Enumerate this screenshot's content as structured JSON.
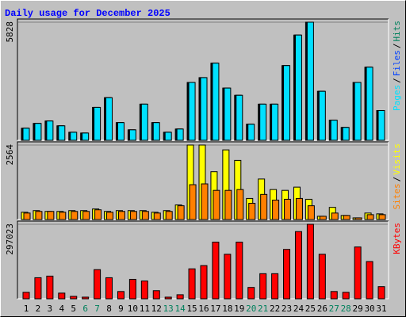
{
  "chart_data": [
    {
      "type": "bar",
      "title": "Daily usage for December 2025",
      "legend_separator": "/",
      "series": [
        {
          "name": "Hits",
          "color": "#00805c",
          "values": [
            595,
            832,
            951,
            713,
            396,
            357,
            1625,
            2101,
            872,
            515,
            1784,
            872,
            396,
            555,
            2854,
            3092,
            3806,
            2577,
            2220,
            793,
            1784,
            1784,
            3687,
            5193,
            5828,
            2418,
            991,
            634,
            2854,
            3608,
            1467
          ]
        },
        {
          "name": "Files",
          "color": "#0040ff",
          "values": [
            595,
            832,
            951,
            713,
            396,
            357,
            1625,
            2101,
            872,
            515,
            1784,
            872,
            396,
            555,
            2854,
            3092,
            3806,
            2577,
            2220,
            793,
            1784,
            1784,
            3687,
            5193,
            5828,
            2418,
            991,
            634,
            2854,
            3608,
            1467
          ]
        },
        {
          "name": "Pages",
          "color": "#00e0ff",
          "values": [
            595,
            832,
            951,
            713,
            396,
            357,
            1625,
            2101,
            872,
            515,
            1784,
            872,
            396,
            555,
            2854,
            3092,
            3806,
            2577,
            2220,
            793,
            1784,
            1784,
            3687,
            5193,
            5828,
            2418,
            991,
            634,
            2854,
            3608,
            1467
          ]
        }
      ],
      "ylim": [
        0,
        5828
      ],
      "yticks": [
        5828
      ]
    },
    {
      "type": "bar",
      "legend_separator": "/",
      "series": [
        {
          "name": "Visits",
          "color": "#ffff00",
          "values": [
            251,
            307,
            279,
            279,
            307,
            307,
            363,
            279,
            307,
            307,
            307,
            251,
            307,
            502,
            2564,
            2564,
            1645,
            2397,
            2035,
            725,
            1394,
            1032,
            1004,
            1115,
            697,
            112,
            418,
            140,
            56,
            223,
            195
          ]
        },
        {
          "name": "Sites",
          "color": "#ff8000",
          "values": [
            223,
            279,
            279,
            251,
            279,
            279,
            335,
            251,
            279,
            279,
            279,
            223,
            279,
            474,
            1199,
            1227,
            1004,
            1004,
            1032,
            558,
            864,
            669,
            697,
            725,
            474,
            112,
            223,
            140,
            56,
            167,
            167
          ]
        }
      ],
      "ylim": [
        0,
        2564
      ],
      "yticks": [
        2564
      ]
    },
    {
      "type": "bar",
      "series": [
        {
          "name": "KBytes",
          "color": "#ff0000",
          "values": [
            25800,
            84000,
            90400,
            22600,
            9700,
            6500,
            116200,
            84000,
            29000,
            77500,
            71000,
            32300,
            6500,
            16100,
            119400,
            132300,
            226000,
            177500,
            226000,
            45200,
            100100,
            100100,
            196900,
            267900,
            297023,
            177500,
            29000,
            25800,
            206600,
            148500,
            48400
          ]
        }
      ],
      "ylim": [
        0,
        297023
      ],
      "yticks": [
        297023
      ],
      "categories": [
        "1",
        "2",
        "3",
        "4",
        "5",
        "6",
        "7",
        "8",
        "9",
        "10",
        "11",
        "12",
        "13",
        "14",
        "15",
        "16",
        "17",
        "18",
        "19",
        "20",
        "21",
        "22",
        "23",
        "24",
        "25",
        "26",
        "27",
        "28",
        "29",
        "30",
        "31"
      ],
      "category_colors": [
        "#000000",
        "#000000",
        "#000000",
        "#000000",
        "#000000",
        "#00805c",
        "#00805c",
        "#000000",
        "#000000",
        "#000000",
        "#000000",
        "#000000",
        "#00805c",
        "#00805c",
        "#000000",
        "#000000",
        "#000000",
        "#000000",
        "#000000",
        "#00805c",
        "#00805c",
        "#000000",
        "#000000",
        "#000000",
        "#000000",
        "#000000",
        "#00805c",
        "#00805c",
        "#000000",
        "#000000",
        "#000000"
      ]
    }
  ]
}
